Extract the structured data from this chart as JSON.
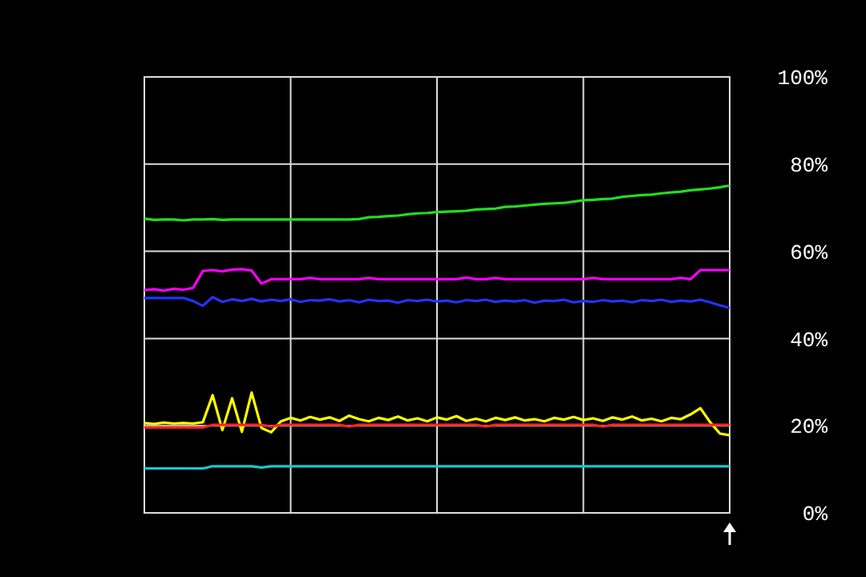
{
  "chart_data": {
    "type": "line",
    "categories": [
      null,
      null,
      null,
      null,
      null,
      null,
      null,
      null,
      null,
      null,
      null,
      null,
      null,
      null,
      null,
      null,
      null,
      null,
      null,
      null,
      null,
      null,
      null,
      null,
      null,
      null,
      null,
      null,
      null,
      null,
      null,
      null,
      null,
      null,
      null,
      null,
      null,
      null,
      null,
      null,
      null,
      null,
      null,
      null,
      null,
      null,
      null,
      null,
      null,
      null,
      null,
      null,
      null,
      null,
      null,
      null,
      null,
      null,
      null,
      null,
      null
    ],
    "series": [
      {
        "color": "#22dd22",
        "values": [
          67.5,
          67.2,
          67.3,
          67.3,
          67.1,
          67.3,
          67.3,
          67.4,
          67.2,
          67.3,
          67.3,
          67.3,
          67.3,
          67.3,
          67.3,
          67.3,
          67.3,
          67.3,
          67.3,
          67.3,
          67.3,
          67.3,
          67.4,
          67.8,
          67.9,
          68.1,
          68.2,
          68.5,
          68.7,
          68.8,
          69.0,
          69.1,
          69.2,
          69.3,
          69.6,
          69.7,
          69.8,
          70.2,
          70.3,
          70.5,
          70.7,
          70.9,
          71.0,
          71.1,
          71.4,
          71.7,
          71.8,
          72.0,
          72.1,
          72.5,
          72.7,
          72.9,
          73.0,
          73.3,
          73.5,
          73.7,
          74.0,
          74.2,
          74.4,
          74.7,
          75.1
        ]
      },
      {
        "color": "#ff00ff",
        "values": [
          51.1,
          51.3,
          51.0,
          51.4,
          51.2,
          51.6,
          55.5,
          55.7,
          55.4,
          55.8,
          55.9,
          55.6,
          52.6,
          53.6,
          53.6,
          53.6,
          53.6,
          53.9,
          53.6,
          53.6,
          53.6,
          53.6,
          53.6,
          53.9,
          53.6,
          53.6,
          53.6,
          53.6,
          53.6,
          53.6,
          53.6,
          53.6,
          53.6,
          54.0,
          53.6,
          53.6,
          53.9,
          53.6,
          53.6,
          53.6,
          53.6,
          53.6,
          53.6,
          53.6,
          53.6,
          53.6,
          53.9,
          53.6,
          53.6,
          53.6,
          53.6,
          53.6,
          53.6,
          53.6,
          53.6,
          53.9,
          53.6,
          55.7,
          55.7,
          55.7,
          55.7
        ]
      },
      {
        "color": "#2233ff",
        "values": [
          49.3,
          49.3,
          49.3,
          49.3,
          49.3,
          48.6,
          47.5,
          49.5,
          48.4,
          49.0,
          48.6,
          49.1,
          48.5,
          48.9,
          48.6,
          49.0,
          48.4,
          48.8,
          48.7,
          49.0,
          48.5,
          48.8,
          48.3,
          48.9,
          48.6,
          48.7,
          48.2,
          48.8,
          48.6,
          48.9,
          48.5,
          48.7,
          48.3,
          48.8,
          48.6,
          48.9,
          48.4,
          48.7,
          48.5,
          48.8,
          48.2,
          48.7,
          48.6,
          48.9,
          48.3,
          48.6,
          48.4,
          48.8,
          48.5,
          48.7,
          48.3,
          48.8,
          48.6,
          48.9,
          48.4,
          48.7,
          48.5,
          48.9,
          48.3,
          47.6,
          47.0
        ]
      },
      {
        "color": "#ffff00",
        "values": [
          20.6,
          20.4,
          20.7,
          20.5,
          20.6,
          20.5,
          20.8,
          27.0,
          19.0,
          26.3,
          18.6,
          27.6,
          19.5,
          18.5,
          21.0,
          21.8,
          21.2,
          22.0,
          21.4,
          21.9,
          21.1,
          22.3,
          21.5,
          21.0,
          21.8,
          21.3,
          22.1,
          21.2,
          21.7,
          21.0,
          21.9,
          21.4,
          22.2,
          21.1,
          21.6,
          21.0,
          21.8,
          21.3,
          21.9,
          21.2,
          21.5,
          21.0,
          21.8,
          21.4,
          22.0,
          21.3,
          21.7,
          21.1,
          21.9,
          21.4,
          22.1,
          21.2,
          21.6,
          21.0,
          21.8,
          21.5,
          22.6,
          24.0,
          20.8,
          18.2,
          17.8
        ]
      },
      {
        "color": "#ff2222",
        "values": [
          19.6,
          19.6,
          19.6,
          19.6,
          19.6,
          19.6,
          19.6,
          20.2,
          20.2,
          20.2,
          20.2,
          20.2,
          20.2,
          19.8,
          20.2,
          20.2,
          20.2,
          20.2,
          20.2,
          20.2,
          20.2,
          19.8,
          20.2,
          20.2,
          20.2,
          20.2,
          20.2,
          20.2,
          20.2,
          20.2,
          20.2,
          20.2,
          20.2,
          20.2,
          20.2,
          19.8,
          20.2,
          20.2,
          20.2,
          20.2,
          20.2,
          20.2,
          20.2,
          20.2,
          20.2,
          20.2,
          20.2,
          19.8,
          20.2,
          20.2,
          20.2,
          20.2,
          20.2,
          20.2,
          20.2,
          20.2,
          20.2,
          20.2,
          20.2,
          20.2,
          20.2
        ]
      },
      {
        "color": "#11cccc",
        "values": [
          10.2,
          10.2,
          10.2,
          10.2,
          10.2,
          10.2,
          10.2,
          10.7,
          10.7,
          10.7,
          10.7,
          10.7,
          10.4,
          10.7,
          10.7,
          10.7,
          10.7,
          10.7,
          10.7,
          10.7,
          10.7,
          10.7,
          10.7,
          10.7,
          10.7,
          10.7,
          10.7,
          10.7,
          10.7,
          10.7,
          10.7,
          10.7,
          10.7,
          10.7,
          10.7,
          10.7,
          10.7,
          10.7,
          10.7,
          10.7,
          10.7,
          10.7,
          10.7,
          10.7,
          10.7,
          10.7,
          10.7,
          10.7,
          10.7,
          10.7,
          10.7,
          10.7,
          10.7,
          10.7,
          10.7,
          10.7,
          10.7,
          10.7,
          10.7,
          10.7,
          10.7
        ]
      }
    ],
    "ylim": [
      0,
      100
    ],
    "yticks": [
      {
        "value": 0,
        "label": "0%"
      },
      {
        "value": 20,
        "label": "20%"
      },
      {
        "value": 40,
        "label": "40%"
      },
      {
        "value": 60,
        "label": "60%"
      },
      {
        "value": 80,
        "label": "80%"
      },
      {
        "value": 100,
        "label": "100%"
      }
    ],
    "grid": true,
    "marker": "none",
    "line_style": "solid"
  }
}
